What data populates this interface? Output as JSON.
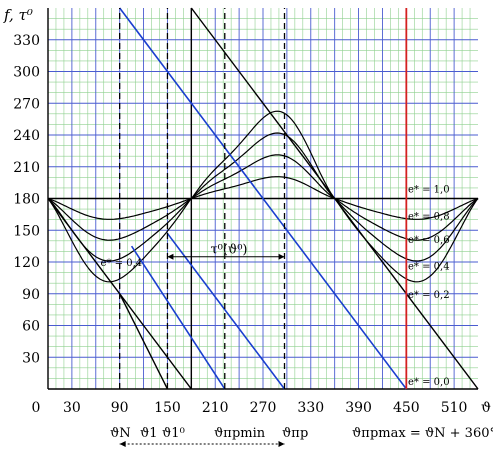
{
  "chart_data": {
    "type": "line",
    "title": "",
    "ylabel": "f, τ⁰",
    "xlabel": "ϑ",
    "xlim": [
      0,
      540
    ],
    "ylim": [
      0,
      360
    ],
    "x_ticks": [
      0,
      30,
      90,
      150,
      210,
      270,
      330,
      390,
      450,
      510
    ],
    "y_ticks": [
      30,
      60,
      90,
      120,
      150,
      180,
      210,
      240,
      270,
      300,
      330
    ],
    "grid": true,
    "family_params": [
      "0,0",
      "0,2",
      "0,4",
      "0,6",
      "0,8",
      "1,0"
    ],
    "series_labels": {
      "e1": "e* = 1,0",
      "e08": "e* = 0,8",
      "e06": "e* = 0,6",
      "e04": "e* = 0,4",
      "e02": "e* = 0,2",
      "e00": "e* = 0,0",
      "left04": "e* = 0,4"
    },
    "tau_label": "τ⁰(ϑ⁰)",
    "bottom_labels": {
      "thN": "ϑN",
      "th1": "ϑ1",
      "th1o": "ϑ1⁰",
      "thmin": "ϑпрmin",
      "thpr": "ϑпр",
      "thmax": "ϑпрmax = ϑN + 360°"
    },
    "dashed_x": [
      90,
      150,
      222,
      297
    ],
    "red_x": 450,
    "black_diagonals": [
      {
        "name": "diag-upper",
        "x": [
          180,
          360
        ],
        "y": [
          360,
          180
        ]
      },
      {
        "name": "diag-lower",
        "x": [
          360,
          540
        ],
        "y": [
          180,
          0
        ]
      },
      {
        "name": "diag-left",
        "x": [
          0,
          180
        ],
        "y": [
          180,
          0
        ]
      },
      {
        "name": "diag-left-inner",
        "x": [
          90,
          150
        ],
        "y": [
          90,
          0
        ]
      }
    ],
    "blue_lines": [
      {
        "name": "blue-long",
        "x": [
          90,
          450
        ],
        "y": [
          360,
          0
        ]
      },
      {
        "name": "blue-mid",
        "x": [
          105,
          222
        ],
        "y": [
          135,
          0
        ]
      },
      {
        "name": "blue-short",
        "x": [
          150,
          297
        ],
        "y": [
          147,
          0
        ]
      }
    ],
    "horizontal_180": {
      "x": [
        0,
        540
      ],
      "y": 180
    },
    "tau_arrow": {
      "x": [
        150,
        297
      ],
      "y": 125
    },
    "bottom_arrow": {
      "x": [
        90,
        297
      ]
    },
    "colors": {
      "black": "#000000",
      "blue": "#1a3fcf",
      "red": "#d42020",
      "grid_major": "#4a5cd0",
      "grid_minor": "#8fd08f"
    }
  }
}
